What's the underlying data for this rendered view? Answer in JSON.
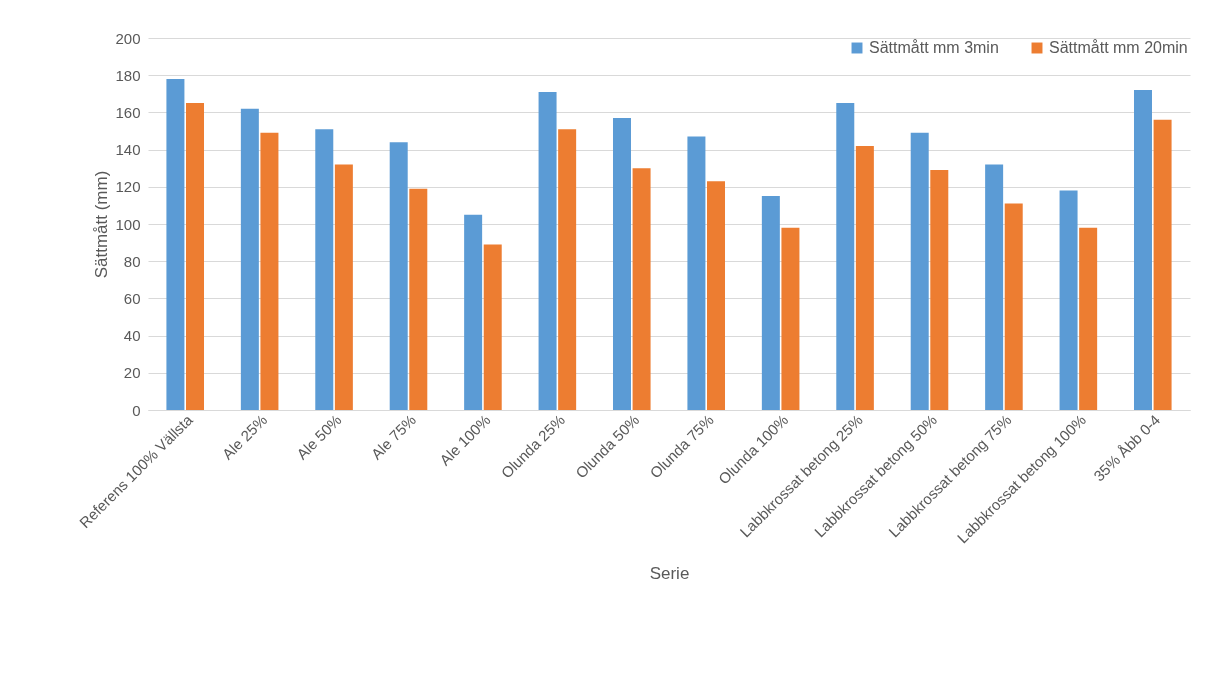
{
  "chart_data": {
    "type": "bar",
    "xlabel": "Serie",
    "ylabel": "Sättmått (mm)",
    "categories": [
      "Referens 100% Vällsta",
      "Ale 25%",
      "Ale 50%",
      "Ale 75%",
      "Ale 100%",
      "Olunda 25%",
      "Olunda 50%",
      "Olunda 75%",
      "Olunda 100%",
      "Labbkrossat betong 25%",
      "Labbkrossat betong 50%",
      "Labbkrossat betong 75%",
      "Labbkrossat betong 100%",
      "35% Åbb 0-4"
    ],
    "series": [
      {
        "name": "Sättmått mm 3min",
        "color": "#5b9bd5",
        "values": [
          178,
          162,
          151,
          144,
          105,
          171,
          157,
          147,
          115,
          165,
          149,
          132,
          118,
          172
        ]
      },
      {
        "name": "Sättmått mm 20min",
        "color": "#ed7d31",
        "values": [
          165,
          149,
          132,
          119,
          89,
          151,
          130,
          123,
          98,
          142,
          129,
          111,
          98,
          156
        ]
      }
    ],
    "ylim": [
      0,
      200
    ],
    "yticks": [
      0,
      20,
      40,
      60,
      80,
      100,
      120,
      140,
      160,
      180,
      200
    ],
    "grid": "y",
    "legend": "top right"
  }
}
